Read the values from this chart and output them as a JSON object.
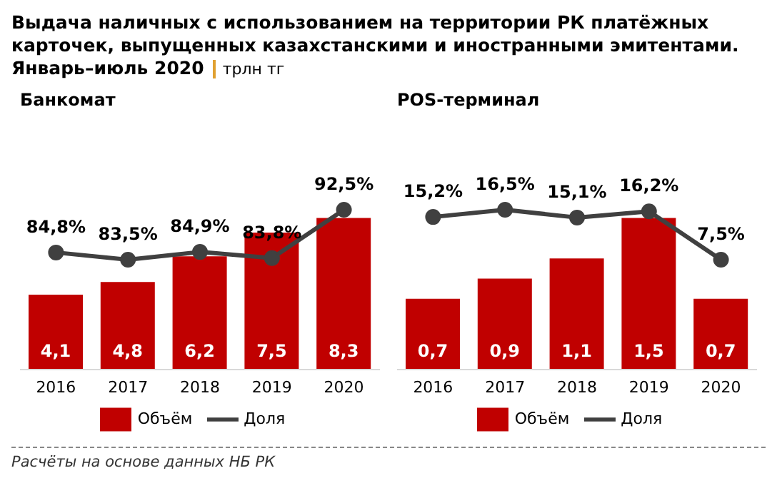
{
  "chart_data": [
    {
      "type": "bar",
      "title": "Выдача наличных с использованием на территории РК платёжных карточек, выпущенных казахстанскими и иностранными эмитентами. Январь–июль 2020",
      "subtitle": "Банкомат",
      "categories": [
        "2016",
        "2017",
        "2018",
        "2019",
        "2020"
      ],
      "legend": "bottom",
      "marker": "circle",
      "annotations": [
        "Расчёты на основе данных НБ РК"
      ],
      "series": [
        {
          "name": "Объём",
          "color": "#c00000",
          "values": [
            4.1,
            4.8,
            6.2,
            7.5,
            8.3
          ],
          "value_labels": [
            "4,1",
            "4,8",
            "6,2",
            "7,5",
            "8,3"
          ]
        },
        {
          "name": "Доля",
          "type": "line",
          "axis": "y2",
          "color": "#404040",
          "values": [
            84.8,
            83.5,
            84.9,
            83.8,
            92.5
          ],
          "value_labels": [
            "84,8%",
            "83,5%",
            "84,9%",
            "83,8%",
            "92,5%"
          ]
        }
      ]
    },
    {
      "type": "bar",
      "ylabel": "трлн тг",
      "subtitle": "POS-терминал",
      "categories": [
        "2016",
        "2017",
        "2018",
        "2019",
        "2020"
      ],
      "legend": "bottom",
      "marker": "circle",
      "series": [
        {
          "name": "Объём",
          "color": "#c00000",
          "values": [
            0.7,
            0.9,
            1.1,
            1.5,
            0.7
          ],
          "value_labels": [
            "0,7",
            "0,9",
            "1,1",
            "1,5",
            "0,7"
          ]
        },
        {
          "name": "Доля",
          "type": "line",
          "axis": "y2",
          "color": "#404040",
          "values": [
            15.2,
            16.5,
            15.1,
            16.2,
            7.5
          ],
          "value_labels": [
            "15,2%",
            "16,5%",
            "15,1%",
            "16,2%",
            "7,5%"
          ]
        }
      ]
    }
  ]
}
